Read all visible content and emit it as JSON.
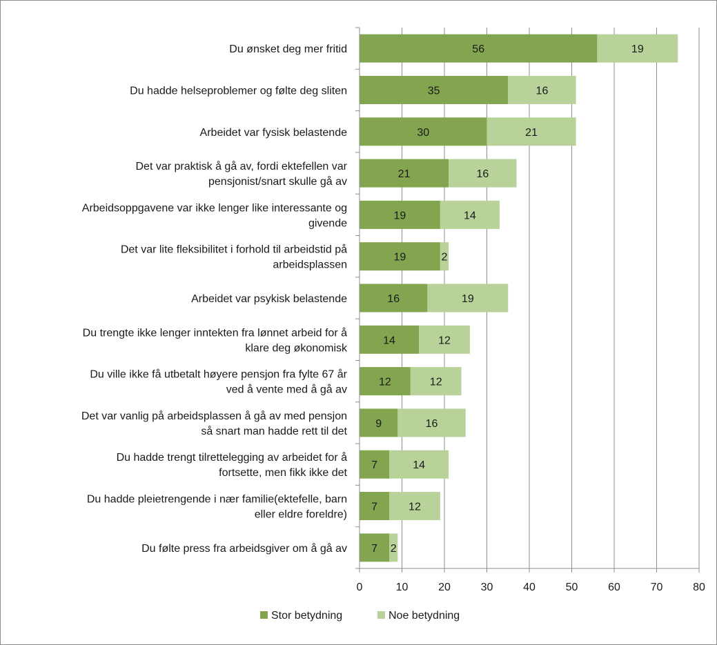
{
  "chart_data": {
    "type": "bar",
    "orientation": "horizontal",
    "stacked": true,
    "categories": [
      [
        "Du ønsket deg mer fritid"
      ],
      [
        "Du hadde helseproblemer og følte deg sliten"
      ],
      [
        "Arbeidet var fysisk belastende"
      ],
      [
        "Det var praktisk å gå av, fordi ektefellen var",
        "pensjonist/snart skulle gå av"
      ],
      [
        "Arbeidsoppgavene var ikke lenger like interessante og",
        "givende"
      ],
      [
        "Det var lite fleksibilitet i forhold til arbeidstid på",
        "arbeidsplassen"
      ],
      [
        "Arbeidet var psykisk belastende"
      ],
      [
        "Du trengte ikke lenger inntekten fra lønnet arbeid for å",
        "klare deg økonomisk"
      ],
      [
        "Du ville ikke få utbetalt høyere pensjon fra fylte 67 år",
        "ved å vente med å gå av"
      ],
      [
        "Det var vanlig på arbeidsplassen å gå av med pensjon",
        "så snart man hadde rett til det"
      ],
      [
        "Du hadde trengt tilrettelegging av arbeidet for å",
        "fortsette, men fikk ikke det"
      ],
      [
        "Du hadde pleietrengende i nær familie(ektefelle, barn",
        "eller eldre foreldre)"
      ],
      [
        "Du følte press fra arbeidsgiver om å gå av"
      ]
    ],
    "series": [
      {
        "name": "Stor betydning",
        "color": "#84a54f",
        "values": [
          56,
          35,
          30,
          21,
          19,
          19,
          16,
          14,
          12,
          9,
          7,
          7,
          7
        ],
        "labels": [
          "56",
          "35",
          "30",
          "21",
          "19",
          "19",
          "16",
          "14",
          "12",
          "9",
          "7",
          "7",
          "7"
        ]
      },
      {
        "name": "Noe betydning",
        "color": "#b9d29a",
        "values": [
          19,
          16,
          21,
          16,
          14,
          2,
          19,
          12,
          12,
          16,
          14,
          12,
          2
        ],
        "labels": [
          "19",
          "16",
          "21",
          "16",
          "14",
          "2",
          "19",
          "12",
          "12",
          "16",
          "14",
          "12",
          "2"
        ]
      }
    ],
    "xlim": [
      0,
      80
    ],
    "xticks": [
      "0",
      "10",
      "20",
      "30",
      "40",
      "50",
      "60",
      "70",
      "80"
    ],
    "grid": true,
    "legend": "bottom",
    "title": "",
    "xlabel": "",
    "ylabel": ""
  }
}
